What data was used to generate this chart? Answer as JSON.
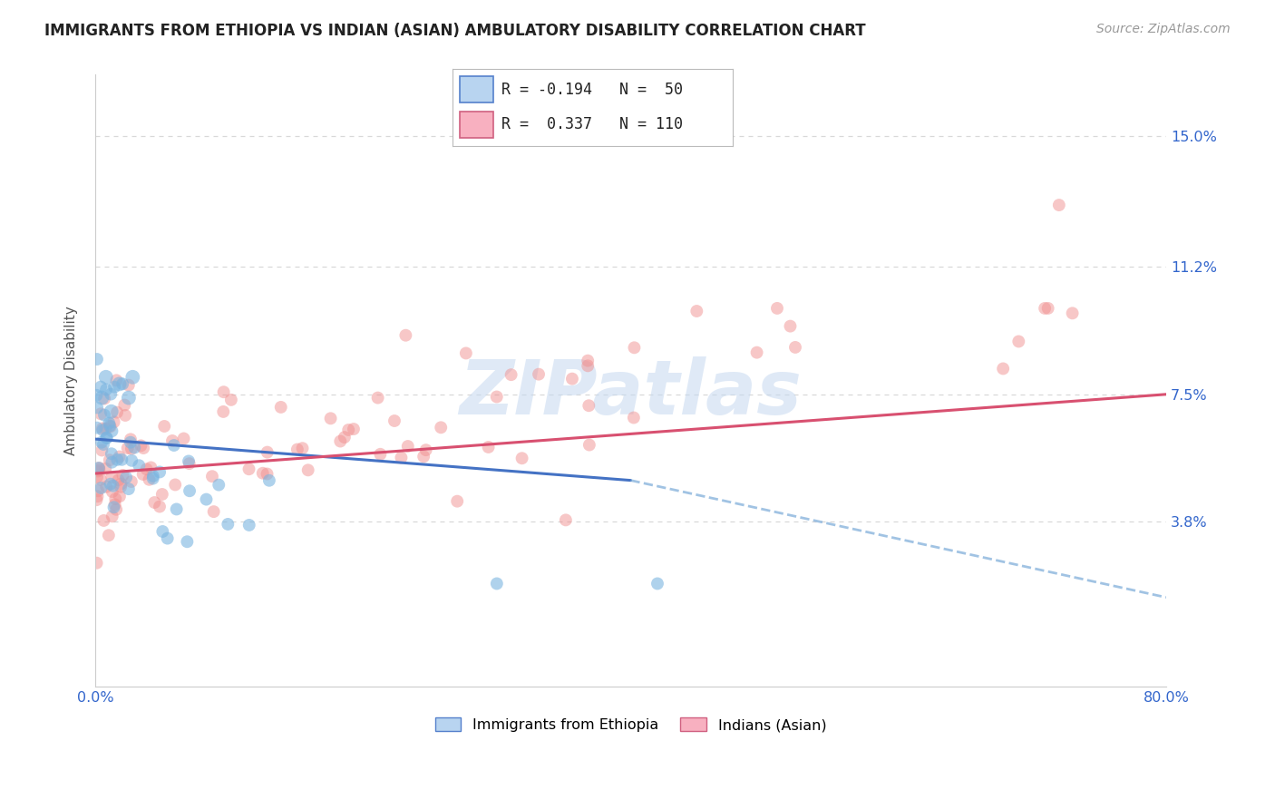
{
  "title": "IMMIGRANTS FROM ETHIOPIA VS INDIAN (ASIAN) AMBULATORY DISABILITY CORRELATION CHART",
  "source": "Source: ZipAtlas.com",
  "ylabel": "Ambulatory Disability",
  "ytick_labels": [
    "3.8%",
    "7.5%",
    "11.2%",
    "15.0%"
  ],
  "ytick_values": [
    0.038,
    0.075,
    0.112,
    0.15
  ],
  "xlim": [
    0.0,
    0.8
  ],
  "ylim": [
    -0.01,
    0.168
  ],
  "watermark": "ZIPatlas",
  "legend_label1": "Immigrants from Ethiopia",
  "legend_label2": "Indians (Asian)",
  "blue_color": "#7ab4e0",
  "pink_color": "#f09090",
  "blue_scatter_alpha": 0.6,
  "pink_scatter_alpha": 0.5,
  "scatter_size": 100,
  "blue_line_solid": {
    "x0": 0.0,
    "y0": 0.062,
    "x1": 0.4,
    "y1": 0.05
  },
  "blue_line_dashed": {
    "x0": 0.4,
    "y0": 0.05,
    "x1": 0.8,
    "y1": 0.016
  },
  "pink_line": {
    "x0": 0.0,
    "y0": 0.052,
    "x1": 0.8,
    "y1": 0.075
  },
  "grid_color": "#d8d8d8",
  "background_color": "#ffffff",
  "title_fontsize": 12,
  "source_fontsize": 10,
  "axis_color": "#3366cc",
  "ylabel_color": "#555555",
  "legend_r1": "R = -0.194   N =  50",
  "legend_r2": "R =  0.337   N = 110",
  "legend_blue_face": "#b8d4f0",
  "legend_blue_edge": "#5580cc",
  "legend_pink_face": "#f8b0c0",
  "legend_pink_edge": "#d06080"
}
